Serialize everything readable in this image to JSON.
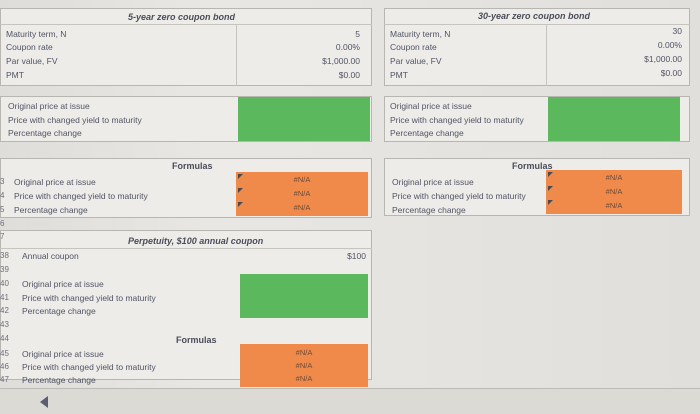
{
  "left_bond": {
    "title": "5-year zero coupon bond",
    "inputs": [
      {
        "label": "Maturity term, N",
        "value": "5"
      },
      {
        "label": "Coupon rate",
        "value": "0.00%"
      },
      {
        "label": "Par value, FV",
        "value": "$1,000.00"
      },
      {
        "label": "PMT",
        "value": "$0.00"
      }
    ],
    "outputs": [
      "Original price at issue",
      "Price with changed yield to maturity",
      "Percentage change"
    ],
    "formulas_title": "Formulas",
    "formulas": [
      {
        "label": "Original price at issue",
        "value": "#N/A"
      },
      {
        "label": "Price with changed yield to maturity",
        "value": "#N/A"
      },
      {
        "label": "Percentage change",
        "value": "#N/A"
      }
    ]
  },
  "right_bond": {
    "title": "30-year zero coupon bond",
    "inputs": [
      {
        "label": "Maturity term, N",
        "value": "30"
      },
      {
        "label": "Coupon rate",
        "value": "0.00%"
      },
      {
        "label": "Par value, FV",
        "value": "$1,000.00"
      },
      {
        "label": "PMT",
        "value": "$0.00"
      }
    ],
    "outputs": [
      "Original price at issue",
      "Price with changed yield to maturity",
      "Percentage change"
    ],
    "formulas_title": "Formulas",
    "formulas": [
      {
        "label": "Original price at issue",
        "value": "#N/A"
      },
      {
        "label": "Price with changed yield to maturity",
        "value": "#N/A"
      },
      {
        "label": "Percentage change",
        "value": "#N/A"
      }
    ]
  },
  "perpetuity": {
    "title": "Perpetuity, $100 annual coupon",
    "coupon_label": "Annual coupon",
    "coupon_value": "$100",
    "outputs": [
      "Original price at issue",
      "Price with changed yield to maturity",
      "Percentage change"
    ],
    "formulas_title": "Formulas",
    "formulas": [
      {
        "label": "Original price at issue",
        "value": "#N/A"
      },
      {
        "label": "Price with changed yield to maturity",
        "value": "#N/A"
      },
      {
        "label": "Percentage change",
        "value": "#N/A"
      }
    ]
  },
  "row_numbers": [
    "3",
    "4",
    "5",
    "6",
    "7",
    "38",
    "39",
    "40",
    "41",
    "42",
    "43",
    "44",
    "45",
    "46",
    "47"
  ],
  "colors": {
    "input_cell": "#5cb85c",
    "formula_cell": "#f08a4b"
  }
}
